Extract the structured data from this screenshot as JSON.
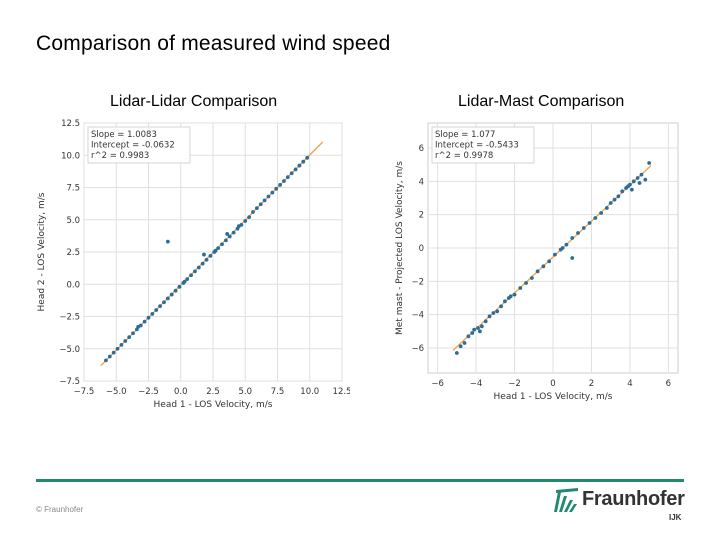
{
  "page": {
    "title": "Comparison of measured wind speed",
    "left_subtitle": "Lidar-Lidar Comparison",
    "right_subtitle": "Lidar-Mast Comparison",
    "copyright": "© Fraunhofer",
    "logo_text": "Fraunhofer",
    "logo_sub": "IJK",
    "accent_color": "#1f8a70"
  },
  "chart_data": [
    {
      "type": "scatter",
      "title": "",
      "xlabel": "Head 1 - LOS Velocity, m/s",
      "ylabel": "Head 2 - LOS Velocity, m/s",
      "xlim": [
        -7.5,
        12.5
      ],
      "ylim": [
        -7.5,
        12.5
      ],
      "xticks": [
        "−7.5",
        "−5.0",
        "−2.5",
        "0.0",
        "2.5",
        "5.0",
        "7.5",
        "10.0",
        "12.5"
      ],
      "yticks": [
        "12.5",
        "10.0",
        "7.5",
        "5.0",
        "2.5",
        "0.0",
        "−2.5",
        "−5.0",
        "−7.5"
      ],
      "grid": true,
      "legend": [
        "Slope = 1.0083",
        "Intercept = -0.0632",
        "r^2 = 0.9983"
      ],
      "legend_position": "top-left",
      "point_color": "#2c6e99",
      "fit_color": "#f5a142",
      "fit": {
        "slope": 1.0083,
        "intercept": -0.0632,
        "x_range": [
          -6.2,
          11.0
        ]
      },
      "points": [
        [
          -5.8,
          -5.9
        ],
        [
          -5.5,
          -5.6
        ],
        [
          -5.2,
          -5.3
        ],
        [
          -4.9,
          -5.0
        ],
        [
          -4.6,
          -4.7
        ],
        [
          -4.3,
          -4.4
        ],
        [
          -4.0,
          -4.1
        ],
        [
          -3.7,
          -3.8
        ],
        [
          -3.4,
          -3.5
        ],
        [
          -3.1,
          -3.2
        ],
        [
          -2.8,
          -2.9
        ],
        [
          -2.5,
          -2.6
        ],
        [
          -2.2,
          -2.3
        ],
        [
          -1.9,
          -2.0
        ],
        [
          -1.6,
          -1.7
        ],
        [
          -1.3,
          -1.4
        ],
        [
          -1.0,
          -1.1
        ],
        [
          -0.7,
          -0.8
        ],
        [
          -0.4,
          -0.5
        ],
        [
          -0.1,
          -0.2
        ],
        [
          0.2,
          0.1
        ],
        [
          0.5,
          0.4
        ],
        [
          0.8,
          0.7
        ],
        [
          1.1,
          1.0
        ],
        [
          1.4,
          1.3
        ],
        [
          1.7,
          1.6
        ],
        [
          2.0,
          1.9
        ],
        [
          2.3,
          2.2
        ],
        [
          2.6,
          2.5
        ],
        [
          2.9,
          2.8
        ],
        [
          3.2,
          3.1
        ],
        [
          3.5,
          3.4
        ],
        [
          3.8,
          3.7
        ],
        [
          4.1,
          4.0
        ],
        [
          4.4,
          4.3
        ],
        [
          4.7,
          4.6
        ],
        [
          5.0,
          4.9
        ],
        [
          5.3,
          5.2
        ],
        [
          5.6,
          5.6
        ],
        [
          5.9,
          5.9
        ],
        [
          6.2,
          6.2
        ],
        [
          6.5,
          6.5
        ],
        [
          6.8,
          6.8
        ],
        [
          7.1,
          7.1
        ],
        [
          7.4,
          7.4
        ],
        [
          7.7,
          7.7
        ],
        [
          8.0,
          8.0
        ],
        [
          8.3,
          8.3
        ],
        [
          8.6,
          8.6
        ],
        [
          8.9,
          8.9
        ],
        [
          9.2,
          9.2
        ],
        [
          9.5,
          9.5
        ],
        [
          9.8,
          9.8
        ],
        [
          3.6,
          3.9
        ],
        [
          1.8,
          2.3
        ],
        [
          -1.0,
          3.3
        ],
        [
          4.5,
          4.5
        ],
        [
          2.7,
          2.6
        ],
        [
          0.3,
          0.2
        ],
        [
          -3.3,
          -3.3
        ]
      ]
    },
    {
      "type": "scatter",
      "title": "",
      "xlabel": "Head 1 - LOS Velocity, m/s",
      "ylabel": "Met mast - Projected LOS Velocity, m/s",
      "xlim": [
        -6.5,
        6.5
      ],
      "ylim": [
        -7.5,
        7.5
      ],
      "xticks": [
        "−6",
        "−4",
        "−2",
        "0",
        "2",
        "4",
        "6"
      ],
      "yticks": [
        "6",
        "4",
        "2",
        "0",
        "−2",
        "−4",
        "−6"
      ],
      "grid": true,
      "legend": [
        "Slope = 1.077",
        "Intercept = -0.5433",
        "r^2 = 0.9978"
      ],
      "legend_position": "top-left",
      "point_color": "#2c6e99",
      "fit_color": "#f5a142",
      "fit": {
        "slope": 1.077,
        "intercept": -0.5433,
        "x_range": [
          -5.2,
          5.1
        ]
      },
      "points": [
        [
          -5.0,
          -6.3
        ],
        [
          -4.8,
          -5.9
        ],
        [
          -4.6,
          -5.7
        ],
        [
          -4.4,
          -5.3
        ],
        [
          -4.2,
          -5.1
        ],
        [
          -4.1,
          -4.9
        ],
        [
          -3.9,
          -4.8
        ],
        [
          -3.7,
          -4.7
        ],
        [
          -3.5,
          -4.4
        ],
        [
          -3.3,
          -4.1
        ],
        [
          -3.1,
          -3.9
        ],
        [
          -2.9,
          -3.8
        ],
        [
          -2.7,
          -3.5
        ],
        [
          -2.5,
          -3.2
        ],
        [
          -2.3,
          -3.0
        ],
        [
          -2.0,
          -2.8
        ],
        [
          -1.7,
          -2.4
        ],
        [
          -1.4,
          -2.1
        ],
        [
          -1.1,
          -1.8
        ],
        [
          -0.8,
          -1.4
        ],
        [
          -0.5,
          -1.1
        ],
        [
          -0.2,
          -0.8
        ],
        [
          0.1,
          -0.4
        ],
        [
          0.4,
          -0.1
        ],
        [
          0.7,
          0.2
        ],
        [
          1.0,
          0.6
        ],
        [
          1.3,
          0.9
        ],
        [
          1.6,
          1.2
        ],
        [
          1.9,
          1.5
        ],
        [
          2.2,
          1.8
        ],
        [
          2.5,
          2.1
        ],
        [
          2.8,
          2.4
        ],
        [
          3.0,
          2.7
        ],
        [
          3.2,
          2.9
        ],
        [
          3.4,
          3.1
        ],
        [
          3.6,
          3.4
        ],
        [
          3.8,
          3.6
        ],
        [
          4.0,
          3.8
        ],
        [
          4.2,
          4.0
        ],
        [
          4.4,
          4.2
        ],
        [
          4.6,
          4.4
        ],
        [
          4.8,
          4.1
        ],
        [
          4.5,
          3.9
        ],
        [
          4.1,
          3.5
        ],
        [
          3.9,
          3.7
        ],
        [
          5.0,
          5.1
        ],
        [
          1.0,
          -0.6
        ],
        [
          -3.8,
          -5.0
        ],
        [
          -2.2,
          -2.9
        ],
        [
          0.5,
          0.0
        ]
      ]
    }
  ]
}
